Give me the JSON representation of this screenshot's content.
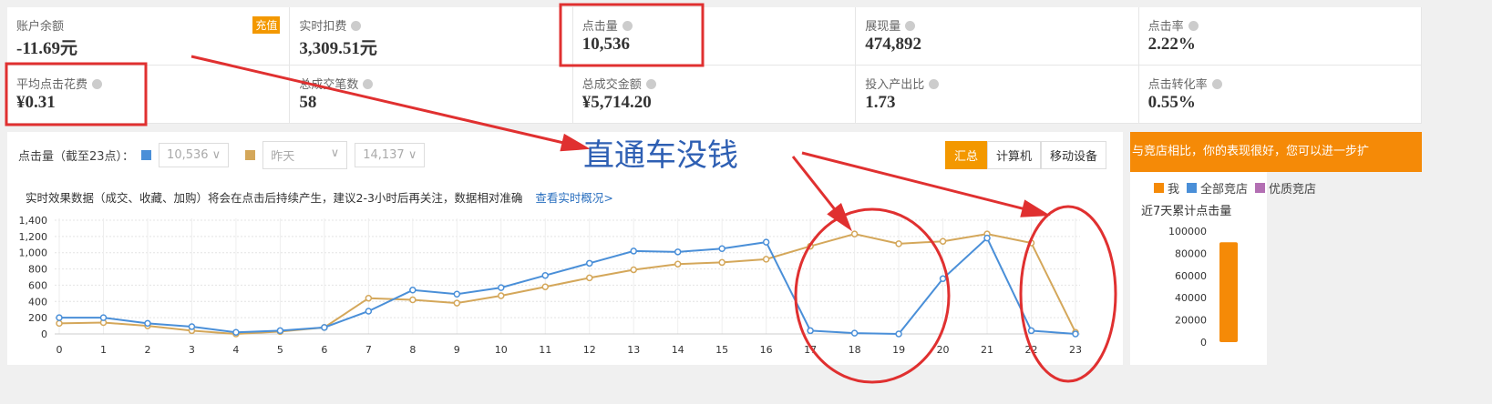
{
  "metrics": [
    {
      "label": "账户余额",
      "value": "-11.69元",
      "badge": "充值"
    },
    {
      "label": "实时扣费",
      "value": "3,309.51元"
    },
    {
      "label": "点击量",
      "value": "10,536"
    },
    {
      "label": "展现量",
      "value": "474,892"
    },
    {
      "label": "点击率",
      "value": "2.22%"
    },
    {
      "label": "平均点击花费",
      "value": "¥0.31"
    },
    {
      "label": "总成交笔数",
      "value": "58"
    },
    {
      "label": "总成交金额",
      "value": "¥5,714.20"
    },
    {
      "label": "投入产出比",
      "value": "1.73"
    },
    {
      "label": "点击转化率",
      "value": "0.55%"
    }
  ],
  "toolbar": {
    "metric_label": "点击量（截至23点）：",
    "today_value": "10,536",
    "compare_label": "昨天",
    "compare_value": "14,137",
    "segments": [
      "汇总",
      "计算机",
      "移动设备"
    ],
    "color_today": "#4a8fd8",
    "color_yesterday": "#d4a75a"
  },
  "notice": {
    "text": "实时效果数据（成交、收藏、加购）将会在点击后持续产生，建议2-3小时后再关注，数据相对准确",
    "link": "查看实时概况>"
  },
  "annotation": {
    "text": "直通车没钱",
    "color": "#e03030"
  },
  "chart_data": [
    {
      "type": "line",
      "x": [
        0,
        1,
        2,
        3,
        4,
        5,
        6,
        7,
        8,
        9,
        10,
        11,
        12,
        13,
        14,
        15,
        16,
        17,
        18,
        19,
        20,
        21,
        22,
        23
      ],
      "ylim": [
        0,
        1400
      ],
      "yticks": [
        "0",
        "200",
        "400",
        "600",
        "800",
        "1,000",
        "1,200",
        "1,400"
      ],
      "grid": true,
      "series": [
        {
          "values": [
            200,
            200,
            130,
            90,
            20,
            40,
            80,
            280,
            540,
            490,
            570,
            720,
            870,
            1020,
            1010,
            1050,
            1130,
            40,
            10,
            0,
            680,
            1180,
            40,
            0
          ],
          "color": "#4a8fd8"
        },
        {
          "values": [
            130,
            140,
            100,
            40,
            0,
            30,
            80,
            440,
            420,
            380,
            470,
            580,
            690,
            790,
            860,
            880,
            920,
            1080,
            1230,
            1110,
            1140,
            1230,
            1120,
            20
          ],
          "color": "#d4a75a"
        }
      ]
    },
    {
      "type": "bar",
      "title": "近7天累计点击量",
      "categories": [
        "我"
      ],
      "legend": [
        {
          "name": "我",
          "color": "#f58a07"
        },
        {
          "name": "全部竞店",
          "color": "#4a8fd8"
        },
        {
          "name": "优质竞店",
          "color": "#b36fb3"
        }
      ],
      "values": [
        90000
      ],
      "ylim": [
        0,
        100000
      ],
      "yticks": [
        "0",
        "20000",
        "40000",
        "60000",
        "80000",
        "100000"
      ]
    }
  ],
  "side": {
    "banner": "与竞店相比，你的表现很好，您可以进一步扩"
  }
}
